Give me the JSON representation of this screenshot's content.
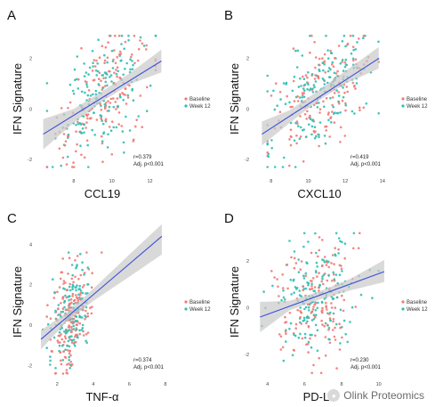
{
  "legend": {
    "baseline": "Baseline",
    "week12": "Week 12"
  },
  "colors": {
    "baseline": "#f07a74",
    "week12": "#2fbfb3",
    "fit": "#3a4fd8",
    "band": "#c9c9c9"
  },
  "watermark": "Olink Proteomics",
  "chart_data": [
    {
      "type": "scatter",
      "letter": "A",
      "xlabel": "CCL19",
      "ylabel": "IFN Signature",
      "xlim": [
        6,
        13
      ],
      "ylim": [
        -2.6,
        3.4
      ],
      "xticks": [
        "8",
        "10",
        "12"
      ],
      "yticks": [
        "-2",
        "0",
        "2"
      ],
      "xtick_values": [
        8,
        10,
        12
      ],
      "ytick_values": [
        -2,
        0,
        2
      ],
      "r": "r=0.379",
      "p": "Adj. p<0.001",
      "fit": [
        [
          6.4,
          -1.0
        ],
        [
          12.6,
          1.9
        ]
      ],
      "band": [
        [
          6.4,
          -1.6,
          -0.4
        ],
        [
          8.0,
          -0.55,
          0.0
        ],
        [
          9.5,
          0.3,
          0.7
        ],
        [
          11.0,
          1.0,
          1.45
        ],
        [
          12.6,
          1.45,
          2.35
        ]
      ],
      "cloud": {
        "xm": 9.6,
        "xs": 1.25,
        "xmin": 6.6,
        "xmax": 12.3,
        "slope": 0.47,
        "xref": 9.5,
        "yc": 0.5,
        "ys": 1.1,
        "ymin": -2.3,
        "ymax": 2.9,
        "n": 320,
        "seed": 11
      }
    },
    {
      "type": "scatter",
      "letter": "B",
      "xlabel": "CXCL10",
      "ylabel": "IFN Signature",
      "xlim": [
        7,
        14.2
      ],
      "ylim": [
        -2.6,
        3.4
      ],
      "xticks": [
        "8",
        "10",
        "12",
        "14"
      ],
      "yticks": [
        "-2",
        "0",
        "2"
      ],
      "xtick_values": [
        8,
        10,
        12,
        14
      ],
      "ytick_values": [
        -2,
        0,
        2
      ],
      "r": "r=0.419",
      "p": "Adj. p<0.001",
      "fit": [
        [
          7.5,
          -1.0
        ],
        [
          13.8,
          2.0
        ]
      ],
      "band": [
        [
          7.5,
          -1.45,
          -0.5
        ],
        [
          9.0,
          -0.55,
          -0.05
        ],
        [
          10.5,
          0.3,
          0.7
        ],
        [
          12.0,
          1.0,
          1.5
        ],
        [
          13.8,
          1.6,
          2.45
        ]
      ],
      "cloud": {
        "xm": 10.7,
        "xs": 1.3,
        "xmin": 7.8,
        "xmax": 13.8,
        "slope": 0.48,
        "xref": 10.6,
        "yc": 0.5,
        "ys": 1.05,
        "ymin": -2.3,
        "ymax": 2.9,
        "n": 330,
        "seed": 23
      }
    },
    {
      "type": "scatter",
      "letter": "C",
      "xlabel": "TNF-α",
      "ylabel": "IFN Signature",
      "xlim": [
        0.8,
        8.2
      ],
      "ylim": [
        -2.6,
        4.9
      ],
      "xticks": [
        "2",
        "4",
        "6",
        "8"
      ],
      "yticks": [
        "-2",
        "0",
        "2",
        "4"
      ],
      "xtick_values": [
        2,
        4,
        6,
        8
      ],
      "ytick_values": [
        -2,
        0,
        2,
        4
      ],
      "r": "r=0.374",
      "p": "Adj. p<0.001",
      "fit": [
        [
          1.1,
          -0.7
        ],
        [
          7.8,
          4.4
        ]
      ],
      "band": [
        [
          1.1,
          -1.2,
          -0.25
        ],
        [
          2.5,
          0.15,
          0.6
        ],
        [
          4.0,
          1.2,
          1.8
        ],
        [
          6.0,
          2.4,
          3.5
        ],
        [
          7.8,
          3.5,
          5.0
        ]
      ],
      "cloud": {
        "xm": 2.8,
        "xs": 0.55,
        "xmin": 1.2,
        "xmax": 7.5,
        "slope": 0.75,
        "xref": 2.8,
        "yc": 0.5,
        "ys": 1.2,
        "ymin": -2.4,
        "ymax": 3.6,
        "n": 330,
        "seed": 37
      }
    },
    {
      "type": "scatter",
      "letter": "D",
      "xlabel": "PD-L1",
      "ylabel": "IFN Signature",
      "xlim": [
        3.2,
        10.4
      ],
      "ylim": [
        -3.0,
        3.5
      ],
      "xticks": [
        "4",
        "6",
        "8",
        "10"
      ],
      "yticks": [
        "-2",
        "0",
        "2"
      ],
      "xtick_values": [
        4,
        6,
        8,
        10
      ],
      "ytick_values": [
        -2,
        0,
        2
      ],
      "r": "r=0.230",
      "p": "Adj. p<0.001",
      "fit": [
        [
          3.6,
          -0.4
        ],
        [
          10.3,
          1.55
        ]
      ],
      "band": [
        [
          3.6,
          -1.05,
          0.25
        ],
        [
          5.2,
          -0.1,
          0.3
        ],
        [
          6.8,
          0.35,
          0.7
        ],
        [
          8.5,
          0.75,
          1.25
        ],
        [
          10.3,
          1.1,
          2.05
        ]
      ],
      "cloud": {
        "xm": 6.6,
        "xs": 1.1,
        "xmin": 3.7,
        "xmax": 10.0,
        "slope": 0.28,
        "xref": 6.6,
        "yc": 0.4,
        "ys": 1.3,
        "ymin": -2.8,
        "ymax": 3.2,
        "n": 330,
        "seed": 51
      }
    }
  ]
}
